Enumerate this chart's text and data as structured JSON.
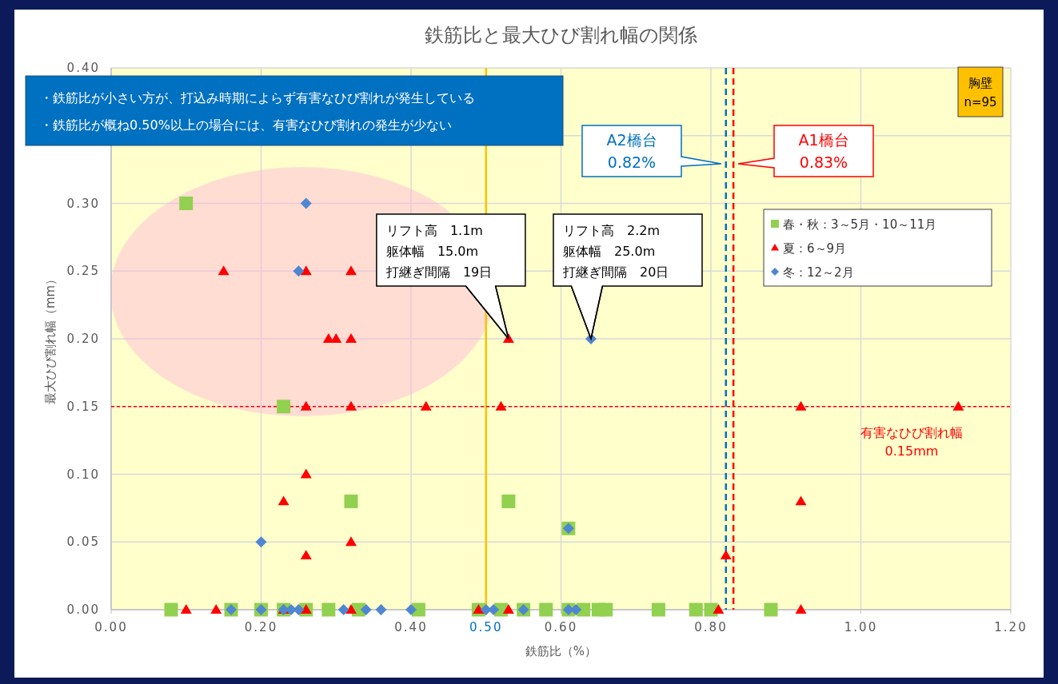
{
  "chart_data": {
    "type": "scatter",
    "title": "鉄筋比と最大ひび割れ幅の関係",
    "xlabel": "鉄筋比（%）",
    "ylabel": "最大ひび割れ幅（mm）",
    "xlim": [
      0,
      1.2
    ],
    "ylim": [
      0,
      0.4
    ],
    "xticks": [
      {
        "value": 0,
        "label": "0.00"
      },
      {
        "value": 0.2,
        "label": "0.20"
      },
      {
        "value": 0.4,
        "label": "0.40"
      },
      {
        "value": 0.6,
        "label": "0.60"
      },
      {
        "value": 0.8,
        "label": "0.80"
      },
      {
        "value": 1.0,
        "label": "1.00"
      },
      {
        "value": 1.2,
        "label": "1.20"
      }
    ],
    "yticks": [
      {
        "value": 0,
        "label": "0.00"
      },
      {
        "value": 0.05,
        "label": "0.05"
      },
      {
        "value": 0.1,
        "label": "0.10"
      },
      {
        "value": 0.15,
        "label": "0.15"
      },
      {
        "value": 0.2,
        "label": "0.20"
      },
      {
        "value": 0.25,
        "label": "0.25"
      },
      {
        "value": 0.3,
        "label": "0.30"
      },
      {
        "value": 0.35,
        "label": null
      },
      {
        "value": 0.4,
        "label": "0.40"
      }
    ],
    "grid": true,
    "legend": "top right",
    "series": [
      {
        "name": "春・秋：3～5月・10～11月",
        "color": "#92d050",
        "marker": "square",
        "x": [
          0.08,
          0.16,
          0.2,
          0.23,
          0.26,
          0.29,
          0.33,
          0.41,
          0.49,
          0.52,
          0.55,
          0.58,
          0.61,
          0.63,
          0.65,
          0.66,
          0.73,
          0.78,
          0.8,
          0.88,
          0.1,
          0.23,
          0.32,
          0.53,
          0.61
        ],
        "values": [
          0,
          0,
          0,
          0,
          0,
          0,
          0,
          0,
          0,
          0,
          0,
          0,
          0,
          0,
          0,
          0,
          0,
          0,
          0,
          0,
          0.3,
          0.15,
          0.08,
          0.08,
          0.06
        ]
      },
      {
        "name": "夏：6～9月",
        "color": "#ff0000",
        "marker": "triangle",
        "x": [
          0.1,
          0.14,
          0.23,
          0.26,
          0.32,
          0.49,
          0.53,
          0.81,
          0.92,
          0.15,
          0.26,
          0.32,
          0.29,
          0.3,
          0.32,
          0.53,
          0.26,
          0.32,
          0.42,
          0.52,
          0.92,
          1.13,
          0.26,
          0.23,
          0.92,
          0.32,
          0.26,
          0.82
        ],
        "values": [
          0,
          0,
          0,
          0,
          0,
          0,
          0,
          0,
          0,
          0.25,
          0.25,
          0.25,
          0.2,
          0.2,
          0.2,
          0.2,
          0.15,
          0.15,
          0.15,
          0.15,
          0.15,
          0.15,
          0.1,
          0.08,
          0.08,
          0.05,
          0.04,
          0.04
        ]
      },
      {
        "name": "冬：12～2月",
        "color": "#4f86d0",
        "marker": "diamond",
        "x": [
          0.16,
          0.2,
          0.23,
          0.24,
          0.25,
          0.31,
          0.34,
          0.36,
          0.4,
          0.5,
          0.51,
          0.55,
          0.61,
          0.62,
          0.26,
          0.25,
          0.64,
          0.61,
          0.2
        ],
        "values": [
          0,
          0,
          0,
          0,
          0,
          0,
          0,
          0,
          0,
          0,
          0,
          0,
          0,
          0,
          0.3,
          0.25,
          0.2,
          0.06,
          0.05
        ]
      }
    ],
    "ref_lines": [
      {
        "axis": "x",
        "value": 0.5,
        "label": "0.50",
        "color": "#ffc000",
        "line_style": "solid"
      },
      {
        "axis": "x",
        "value": 0.82,
        "label": "A2橋台\n0.82%",
        "color": "#0070c0",
        "line_style": "dashed"
      },
      {
        "axis": "x",
        "value": 0.83,
        "label": "A1橋台\n0.83%",
        "color": "#ff0000",
        "line_style": "dashed"
      },
      {
        "axis": "y",
        "value": 0.15,
        "label": "有害なひび割れ幅\n0.15mm",
        "color": "#ff0000",
        "line_style": "dotted"
      }
    ],
    "annotations": [
      "・鉄筋比が小さい方が、打込み時期によらず有害なひび割れが発生している",
      "・鉄筋比が概ね0.50%以上の場合には、有害なひび割れの発生が少ない",
      "胸壁\nn=95",
      {
        "text": "リフト高　1.1m\n躯体幅　15.0m\n打継ぎ間隔　19日",
        "x": 0.53,
        "y": 0.2
      },
      {
        "text": "リフト高　2.2m\n躯体幅　25.0m\n打継ぎ間隔　20日",
        "x": 0.64,
        "y": 0.2
      }
    ]
  }
}
